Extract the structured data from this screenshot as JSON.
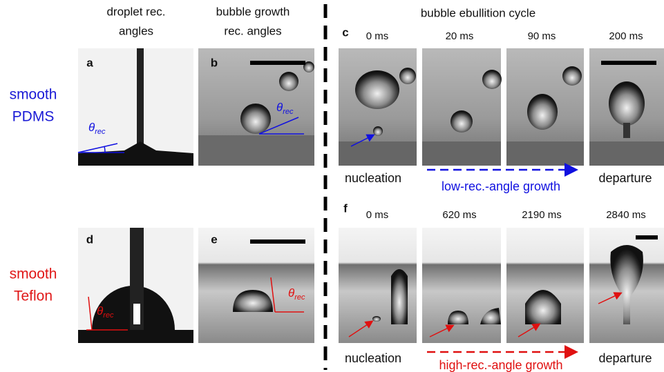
{
  "column_headers": [
    [
      "droplet rec.",
      "angles"
    ],
    [
      "bubble growth",
      "rec. angles"
    ],
    [
      "bubble ebullition cycle"
    ]
  ],
  "angle_label": {
    "symbol": "θ",
    "subscript": "rec"
  },
  "rows": [
    {
      "material": [
        "smooth",
        "PDMS"
      ],
      "panels": [
        "a",
        "b",
        "c"
      ],
      "times": [
        "0 ms",
        "20 ms",
        "90 ms",
        "200 ms"
      ],
      "stages": [
        "nucleation",
        "low-rec.-angle growth",
        "departure"
      ]
    },
    {
      "material": [
        "smooth",
        "Teflon"
      ],
      "panels": [
        "d",
        "e",
        "f"
      ],
      "times": [
        "0 ms",
        "620 ms",
        "2190 ms",
        "2840 ms"
      ],
      "stages": [
        "nucleation",
        "high-rec.-angle growth",
        "departure"
      ]
    }
  ]
}
